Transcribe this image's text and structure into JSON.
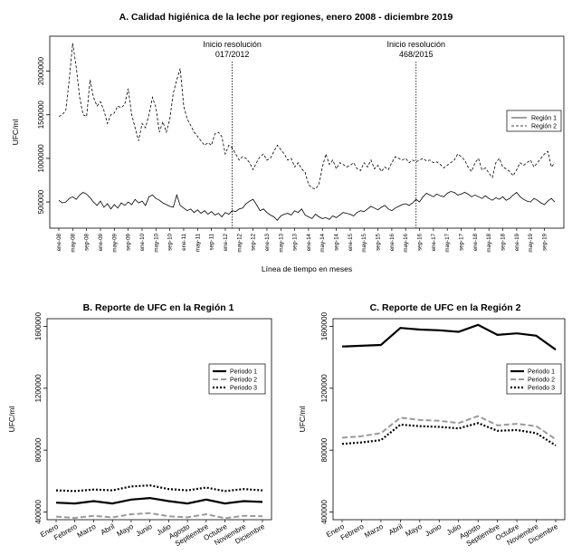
{
  "chart_data": [
    {
      "id": "A",
      "type": "line",
      "title": "A.  Calidad higiénica de la leche por regiones, enero 2008 - diciembre 2019",
      "xlabel": "Línea de tiempo en meses",
      "ylabel": "UFC/ml",
      "ylim": [
        200000,
        2400000
      ],
      "yticks": [
        500000,
        1000000,
        1500000,
        2000000
      ],
      "ytick_labels": [
        "500000",
        "1000000",
        "1500000",
        "2000000"
      ],
      "x_start": "2008-01",
      "x_months": 144,
      "xticks": [
        "ene-08",
        "may-08",
        "sep-08",
        "ene-09",
        "may-09",
        "sep-09",
        "ene-10",
        "may-10",
        "sep-10",
        "ene-11",
        "may-11",
        "sep-11",
        "ene-12",
        "may-12",
        "sep-12",
        "ene-13",
        "may-13",
        "sep-13",
        "ene-14",
        "may-14",
        "sep-14",
        "ene-15",
        "may-15",
        "sep-15",
        "ene-16",
        "may-16",
        "sep-16",
        "ene-17",
        "may-17",
        "sep-17",
        "ene-18",
        "may-18",
        "sep-18",
        "ene-19",
        "may-19",
        "sep-19"
      ],
      "annotations": [
        {
          "month_index": 50,
          "line1": "Inicio resolución",
          "line2": "017/2012"
        },
        {
          "month_index": 103,
          "line1": "Inicio resolución",
          "line2": "468/2015"
        }
      ],
      "legend_position": "right",
      "series": [
        {
          "name": "Región 1",
          "style": "solid",
          "values": [
            520000,
            490000,
            500000,
            540000,
            560000,
            530000,
            580000,
            610000,
            590000,
            550000,
            500000,
            460000,
            510000,
            440000,
            480000,
            420000,
            470000,
            430000,
            490000,
            460000,
            500000,
            470000,
            530000,
            490000,
            510000,
            460000,
            560000,
            580000,
            540000,
            520000,
            490000,
            470000,
            450000,
            440000,
            580000,
            460000,
            430000,
            400000,
            420000,
            380000,
            410000,
            370000,
            400000,
            360000,
            390000,
            350000,
            370000,
            330000,
            380000,
            360000,
            400000,
            390000,
            420000,
            430000,
            480000,
            510000,
            530000,
            470000,
            400000,
            420000,
            380000,
            350000,
            330000,
            290000,
            340000,
            360000,
            370000,
            350000,
            400000,
            380000,
            420000,
            350000,
            330000,
            310000,
            360000,
            330000,
            310000,
            320000,
            300000,
            340000,
            320000,
            350000,
            380000,
            370000,
            360000,
            340000,
            380000,
            400000,
            390000,
            420000,
            450000,
            430000,
            410000,
            440000,
            460000,
            420000,
            400000,
            430000,
            450000,
            470000,
            480000,
            460000,
            490000,
            530000,
            500000,
            560000,
            600000,
            580000,
            560000,
            590000,
            570000,
            560000,
            600000,
            620000,
            610000,
            580000,
            590000,
            610000,
            590000,
            560000,
            580000,
            560000,
            540000,
            570000,
            540000,
            520000,
            550000,
            530000,
            560000,
            520000,
            540000,
            580000,
            610000,
            560000,
            530000,
            510000,
            500000,
            540000,
            520000,
            490000,
            470000,
            510000,
            540000,
            500000
          ]
        },
        {
          "name": "Región 2",
          "style": "dashed",
          "values": [
            1480000,
            1500000,
            1550000,
            1900000,
            2320000,
            2050000,
            1700000,
            1500000,
            1480000,
            1900000,
            1700000,
            1600000,
            1650000,
            1550000,
            1400000,
            1500000,
            1520000,
            1600000,
            1580000,
            1620000,
            1800000,
            1500000,
            1350000,
            1200000,
            1400000,
            1350000,
            1500000,
            1700000,
            1580000,
            1300000,
            1420000,
            1300000,
            1450000,
            1750000,
            1900000,
            2030000,
            1600000,
            1450000,
            1380000,
            1300000,
            1250000,
            1200000,
            1150000,
            1180000,
            1150000,
            1280000,
            1300000,
            1250000,
            1050000,
            1150000,
            1120000,
            1050000,
            980000,
            1020000,
            1000000,
            950000,
            870000,
            950000,
            1020000,
            1050000,
            980000,
            1000000,
            1080000,
            1150000,
            1100000,
            1050000,
            980000,
            1000000,
            900000,
            950000,
            880000,
            840000,
            700000,
            660000,
            650000,
            700000,
            900000,
            1050000,
            930000,
            980000,
            880000,
            950000,
            930000,
            900000,
            920000,
            950000,
            880000,
            860000,
            950000,
            900000,
            980000,
            880000,
            920000,
            850000,
            900000,
            870000,
            950000,
            1020000,
            1000000,
            980000,
            1000000,
            950000,
            980000,
            960000,
            980000,
            1000000,
            970000,
            980000,
            950000,
            960000,
            930000,
            890000,
            920000,
            950000,
            980000,
            1050000,
            1020000,
            980000,
            900000,
            850000,
            950000,
            1000000,
            870000,
            890000,
            830000,
            780000,
            950000,
            1000000,
            900000,
            880000,
            850000,
            800000,
            870000,
            950000,
            920000,
            950000,
            980000,
            900000,
            950000,
            1000000,
            1050000,
            1080000,
            900000,
            950000
          ]
        }
      ]
    },
    {
      "id": "B",
      "type": "line",
      "title": "B.  Reporte de UFC en la Región 1",
      "ylabel": "UFC/ml",
      "ylim": [
        350000,
        1650000
      ],
      "yticks": [
        400000,
        800000,
        1200000,
        1600000
      ],
      "ytick_labels": [
        "400000",
        "800000",
        "1200000",
        "1600000"
      ],
      "categories": [
        "Enero",
        "Febrero",
        "Marzo",
        "Abril",
        "Mayo",
        "Junio",
        "Julio",
        "Agosto",
        "Septiembre",
        "Octubre",
        "Noviembre",
        "Diciembre"
      ],
      "legend_position": "right",
      "series": [
        {
          "name": "Periodo 1",
          "style": "solid",
          "values": [
            460000,
            455000,
            470000,
            455000,
            480000,
            490000,
            470000,
            455000,
            480000,
            455000,
            470000,
            465000
          ]
        },
        {
          "name": "Periodo 2",
          "style": "long-dash",
          "values": [
            370000,
            362000,
            375000,
            365000,
            385000,
            393000,
            372000,
            365000,
            385000,
            360000,
            375000,
            372000
          ]
        },
        {
          "name": "Periodo 3",
          "style": "dotted",
          "values": [
            540000,
            535000,
            545000,
            540000,
            565000,
            572000,
            548000,
            540000,
            558000,
            535000,
            548000,
            540000
          ]
        }
      ]
    },
    {
      "id": "C",
      "type": "line",
      "title": "C.  Reporte de UFC en la Región 2",
      "ylabel": "UFC/ml",
      "ylim": [
        350000,
        1650000
      ],
      "yticks": [
        400000,
        800000,
        1200000,
        1600000
      ],
      "ytick_labels": [
        "400000",
        "800000",
        "1200000",
        "1600000"
      ],
      "categories": [
        "Enero",
        "Febrero",
        "Marzo",
        "Abril",
        "Mayo",
        "Junio",
        "Julio",
        "Agosto",
        "Septiembre",
        "Octubre",
        "Noviembre",
        "Diciembre"
      ],
      "legend_position": "right",
      "series": [
        {
          "name": "Periodo 1",
          "style": "solid",
          "values": [
            1470000,
            1475000,
            1480000,
            1590000,
            1580000,
            1575000,
            1565000,
            1610000,
            1545000,
            1555000,
            1540000,
            1450000
          ]
        },
        {
          "name": "Periodo 2",
          "style": "long-dash",
          "values": [
            880000,
            890000,
            910000,
            1010000,
            995000,
            990000,
            975000,
            1020000,
            960000,
            970000,
            955000,
            870000
          ]
        },
        {
          "name": "Periodo 3",
          "style": "dotted",
          "values": [
            840000,
            850000,
            865000,
            965000,
            955000,
            950000,
            940000,
            975000,
            925000,
            930000,
            910000,
            830000
          ]
        }
      ]
    }
  ]
}
